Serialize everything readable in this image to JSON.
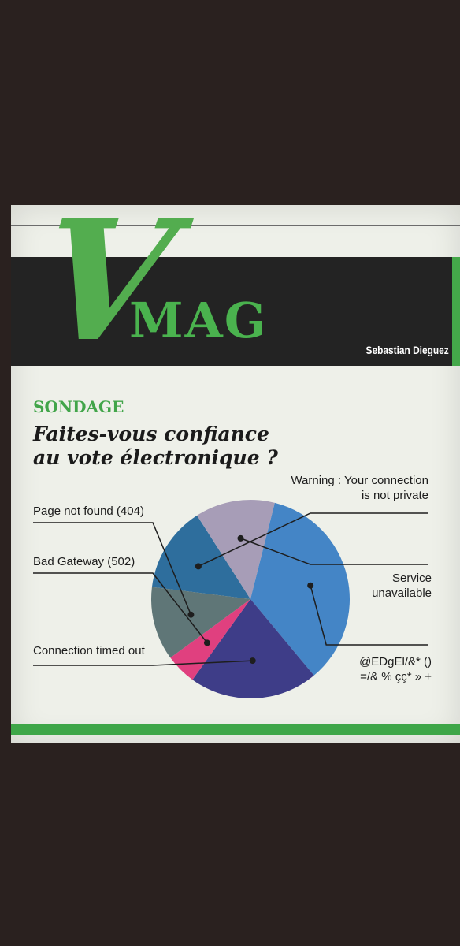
{
  "header": {
    "logo_v": "V",
    "logo_mag": "MAG",
    "author": "Sebastian Dieguez"
  },
  "section": "SONDAGE",
  "headline_line1": "Faites-vous confiance",
  "headline_line2": "au vote électronique ?",
  "chart_data": {
    "type": "pie",
    "title": "Faites-vous confiance au vote électronique ?",
    "slices": [
      {
        "label": "Warning : Your connection is not private",
        "value": 14,
        "color": "#2e6e9d"
      },
      {
        "label": "Service unavailable",
        "value": 13,
        "color": "#a79db7"
      },
      {
        "label": "@EDgEl/&* () =/& % çç* » +",
        "value": 35,
        "color": "#4485c6"
      },
      {
        "label": "Connection timed out",
        "value": 21,
        "color": "#3e3d88"
      },
      {
        "label": "Bad Gateway (502)",
        "value": 5,
        "color": "#e0407f"
      },
      {
        "label": "Page not found (404)",
        "value": 12,
        "color": "#5f7677"
      }
    ],
    "start_label": "Warning : Your connection is not private",
    "direction": "clockwise"
  },
  "labels": {
    "warning_l1": "Warning : Your connection",
    "warning_l2": "is not private",
    "service_l1": "Service",
    "service_l2": "unavailable",
    "symbols_l1": "@EDgEl/&* ()",
    "symbols_l2": "=/& % çç* » +",
    "timeout": "Connection timed out",
    "bad_gateway": "Bad Gateway (502)",
    "not_found": "Page not found (404)"
  }
}
